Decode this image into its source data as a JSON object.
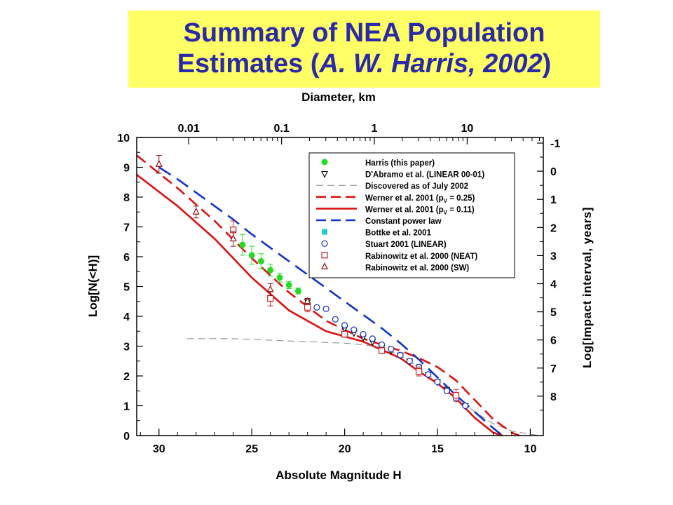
{
  "title": {
    "line1": "Summary of NEA Population",
    "line2_prefix": "Estimates (",
    "line2_italic": "A. W. Harris, 2002",
    "line2_suffix": ")"
  },
  "chart_data": {
    "type": "line",
    "xlabel": "Absolute Magnitude  H",
    "x2label": "Diameter, km",
    "ylabel": "Log[N(<H)]",
    "y2label": "Log[Impact interval, years]",
    "xlim": [
      31.2,
      9.3
    ],
    "ylim": [
      0,
      10
    ],
    "y2lim": [
      -1.2,
      9.4
    ],
    "x_ticks": [
      30,
      25,
      20,
      15,
      10
    ],
    "x_tick_labels": [
      "30",
      "25",
      "20",
      "15",
      "10"
    ],
    "y_ticks": [
      0,
      1,
      2,
      3,
      4,
      5,
      6,
      7,
      8,
      9,
      10
    ],
    "y_tick_labels": [
      "0",
      "1",
      "2",
      "3",
      "4",
      "5",
      "6",
      "7",
      "8",
      "9",
      "10"
    ],
    "y2_ticks": [
      -1,
      0,
      1,
      2,
      3,
      4,
      5,
      6,
      7,
      8
    ],
    "y2_tick_labels": [
      "-1",
      "0",
      "1",
      "2",
      "3",
      "4",
      "5",
      "6",
      "7",
      "8"
    ],
    "x2_ticks_H": [
      28.4,
      23.4,
      18.4,
      13.4
    ],
    "x2_tick_labels": [
      "0.01",
      "0.1",
      "1",
      "10"
    ],
    "grid": false,
    "legend_position": "top-right",
    "legend": [
      {
        "label": "Harris (this paper)",
        "marker": "filled-circle",
        "color": "#22dd22"
      },
      {
        "label": "D'Abramo et al. (LINEAR 00-01)",
        "marker": "triangle-down",
        "color": "#000000"
      },
      {
        "label": "Discovered as of July 2002",
        "line": "thin-dash",
        "color": "#888888"
      },
      {
        "label": "Werner et al. 2001 (p",
        "sub": "V",
        "suffix": " = 0.25)",
        "line": "thick-dash",
        "color": "#dd1111"
      },
      {
        "label": "Werner et al. 2001 (p",
        "sub": "V",
        "suffix": " = 0.11)",
        "line": "thick-solid",
        "color": "#dd1111"
      },
      {
        "label": "Constant power law",
        "line": "thick-dash",
        "color": "#1133cc"
      },
      {
        "label": "Bottke et al. 2001",
        "marker": "filled-square",
        "color": "#22cccc"
      },
      {
        "label": "Stuart 2001 (LINEAR)",
        "marker": "circle",
        "color": "#1133cc"
      },
      {
        "label": "Rabinowitz et al. 2000 (NEAT)",
        "marker": "square",
        "color": "#cc2222"
      },
      {
        "label": "Rabinowitz et al. 2000 (SW)",
        "marker": "triangle",
        "color": "#991111"
      }
    ],
    "series": [
      {
        "name": "Werner et al. 2001 (pV = 0.11)",
        "style": "solid",
        "color": "#dd1111",
        "x": [
          31.2,
          29,
          27,
          25,
          23,
          21,
          19,
          17,
          16,
          15,
          14,
          13,
          12,
          11.5
        ],
        "y": [
          8.75,
          7.7,
          6.6,
          5.3,
          4.2,
          3.5,
          3.15,
          2.6,
          2.15,
          1.75,
          1.25,
          0.6,
          0.1,
          0
        ]
      },
      {
        "name": "Werner et al. 2001 (pV = 0.25)",
        "style": "dash",
        "color": "#dd1111",
        "x": [
          31.2,
          29,
          27,
          25,
          23,
          21,
          19,
          17,
          16,
          15,
          14,
          13,
          12,
          11,
          10.6
        ],
        "y": [
          9.4,
          8.3,
          7.2,
          5.95,
          4.8,
          3.85,
          3.25,
          2.85,
          2.6,
          2.3,
          1.85,
          1.2,
          0.55,
          0.1,
          0
        ]
      },
      {
        "name": "Constant power law",
        "style": "dash-blue",
        "color": "#1133cc",
        "x": [
          30,
          29,
          28,
          27,
          26,
          25,
          24,
          23,
          22,
          21,
          20,
          19,
          18,
          17,
          16,
          15,
          14,
          13,
          12,
          11.5
        ],
        "y": [
          9.0,
          8.6,
          8.15,
          7.7,
          7.25,
          6.75,
          6.3,
          5.85,
          5.4,
          4.95,
          4.5,
          4.05,
          3.6,
          3.1,
          2.55,
          1.95,
          1.35,
          0.8,
          0.25,
          0
        ]
      },
      {
        "name": "Discovered as of July 2002",
        "style": "thin-dash",
        "color": "#888888",
        "x": [
          28.5,
          26,
          24,
          22,
          20,
          19,
          18,
          17,
          16,
          15,
          14,
          13,
          12,
          11,
          10,
          9.5
        ],
        "y": [
          3.25,
          3.25,
          3.2,
          3.15,
          3.1,
          3.05,
          2.95,
          2.7,
          2.3,
          1.8,
          1.3,
          0.8,
          0.4,
          0.15,
          0.05,
          0
        ]
      },
      {
        "name": "Harris (this paper)",
        "marker": "filled-circle",
        "color": "#22dd22",
        "x": [
          25.5,
          25,
          24.5,
          24,
          23.5,
          23,
          22.5,
          22
        ],
        "y": [
          6.4,
          6.05,
          5.85,
          5.55,
          5.3,
          5.05,
          4.85,
          4.45
        ],
        "err": [
          0.35,
          0.3,
          0.25,
          0.2,
          0.15,
          0.12,
          0.1,
          0.1
        ]
      },
      {
        "name": "D'Abramo et al. (LINEAR 00-01)",
        "marker": "triangle-down",
        "color": "#000000",
        "x": [
          22.0,
          20.0,
          19.5,
          19.0,
          18.5,
          18.0,
          17.5,
          17.0,
          16.5,
          16.0,
          15.5,
          15.0,
          14.5,
          14.0,
          13.5
        ],
        "y": [
          4.5,
          3.6,
          3.45,
          3.3,
          3.15,
          2.95,
          2.85,
          2.7,
          2.5,
          2.3,
          2.05,
          1.8,
          1.55,
          1.25,
          1.0
        ]
      },
      {
        "name": "Bottke et al. 2001",
        "marker": "filled-square",
        "color": "#22cccc",
        "x": [
          18.0
        ],
        "y": [
          2.95
        ]
      },
      {
        "name": "Stuart 2001 (LINEAR)",
        "marker": "circle",
        "color": "#1133cc",
        "x": [
          21.5,
          21.0,
          20.5,
          20.0,
          19.5,
          19.0,
          18.5,
          18.0,
          17.5,
          17.0,
          16.5,
          16.0,
          15.5,
          15.0,
          14.5,
          14.0,
          13.5
        ],
        "y": [
          4.3,
          4.25,
          3.9,
          3.7,
          3.55,
          3.4,
          3.25,
          3.05,
          2.9,
          2.7,
          2.5,
          2.3,
          2.05,
          1.8,
          1.5,
          1.25,
          1.0
        ]
      },
      {
        "name": "Rabinowitz et al. 2000 (NEAT)",
        "marker": "square",
        "color": "#cc2222",
        "x": [
          26.0,
          24.0,
          22.0,
          20.0,
          18.0,
          16.0,
          14.0
        ],
        "y": [
          6.9,
          4.6,
          4.3,
          3.4,
          2.85,
          2.15,
          1.35
        ],
        "err": [
          0.3,
          0.25,
          0.15,
          0.1,
          0.1,
          0.15,
          0.2
        ]
      },
      {
        "name": "Rabinowitz et al. 2000 (SW)",
        "marker": "triangle",
        "color": "#991111",
        "x": [
          30.0,
          28.0,
          26.0,
          24.0,
          22.0
        ],
        "y": [
          9.1,
          7.5,
          6.6,
          4.9,
          4.5
        ],
        "err": [
          0.3,
          0.2,
          0.25,
          0.2,
          0.1
        ]
      }
    ]
  }
}
